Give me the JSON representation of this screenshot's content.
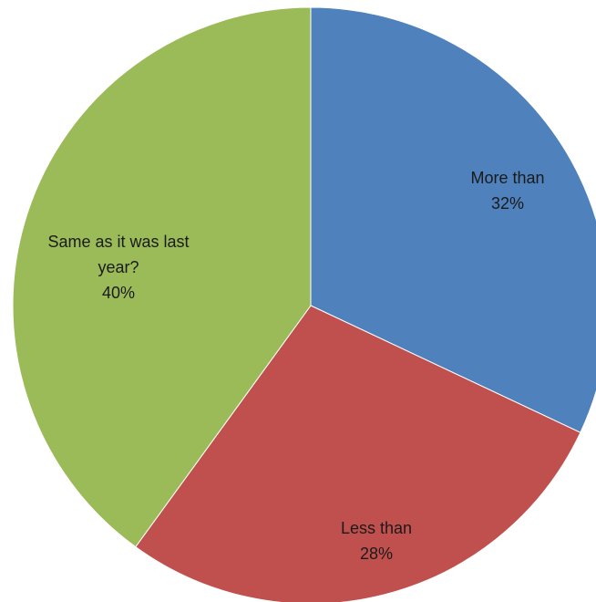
{
  "chart_data": {
    "type": "pie",
    "title": "",
    "slices": [
      {
        "name": "More than",
        "label_lines": [
          "More than"
        ],
        "value": 32,
        "value_label": "32%",
        "color": "#4F81BD"
      },
      {
        "name": "Less than",
        "label_lines": [
          "Less than"
        ],
        "value": 28,
        "value_label": "28%",
        "color": "#C0504D"
      },
      {
        "name": "Same as it was last year?",
        "label_lines": [
          "Same as it was last",
          "year?"
        ],
        "value": 40,
        "value_label": "40%",
        "color": "#9BBB59"
      }
    ],
    "start_angle_deg": 0,
    "direction": "clockwise",
    "legend": "none",
    "data_labels": "inside"
  }
}
